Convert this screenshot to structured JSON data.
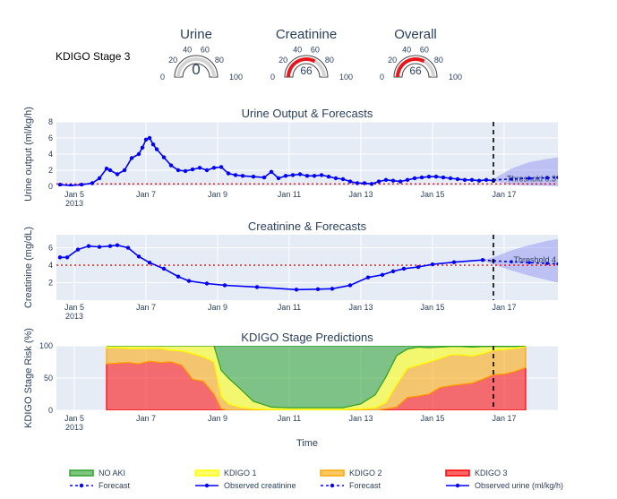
{
  "header": {
    "stage_label": "KDIGO Stage 3"
  },
  "gauges": [
    {
      "title": "Urine",
      "value": 0,
      "min": 0,
      "max": 100,
      "ticks": [
        "0",
        "20",
        "40",
        "60",
        "80",
        "100"
      ],
      "bar_color": "#d9d9d9"
    },
    {
      "title": "Creatinine",
      "value": 66,
      "min": 0,
      "max": 100,
      "ticks": [
        "0",
        "20",
        "40",
        "60",
        "80",
        "100"
      ],
      "bar_color": "#e8161b"
    },
    {
      "title": "Overall",
      "value": 66,
      "min": 0,
      "max": 100,
      "ticks": [
        "0",
        "20",
        "40",
        "60",
        "80",
        "100"
      ],
      "bar_color": "#e8161b"
    }
  ],
  "colors": {
    "plot_bg": "#e5ecf6",
    "observed": "#0000ff",
    "forecast_band": "#8c8cf0",
    "threshold": "#ff0000",
    "no_aki": "#2ca02c",
    "kdigo1": "#ffff00",
    "kdigo2": "#ffa500",
    "kdigo3": "#ff0000"
  },
  "x_ticks": [
    {
      "day": 5,
      "label": "Jan 5",
      "sub": "2013"
    },
    {
      "day": 7,
      "label": "Jan 7",
      "sub": ""
    },
    {
      "day": 9,
      "label": "Jan 9",
      "sub": ""
    },
    {
      "day": 11,
      "label": "Jan 11",
      "sub": ""
    },
    {
      "day": 13,
      "label": "Jan 13",
      "sub": ""
    },
    {
      "day": 15,
      "label": "Jan 15",
      "sub": ""
    },
    {
      "day": 17,
      "label": "Jan 17",
      "sub": ""
    }
  ],
  "chart_data": [
    {
      "type": "line",
      "title": "Urine Output & Forecasts",
      "xlabel": "",
      "ylabel": "Urine output (ml/kg/h)",
      "ylim": [
        0,
        8
      ],
      "yticks": [
        0,
        2,
        4,
        6,
        8
      ],
      "xlim_days": [
        4.5,
        18.5
      ],
      "current_time_day": 16.7,
      "threshold": {
        "value": 0.3,
        "label": "Threshold 0.3"
      },
      "series": [
        {
          "name": "Observed urine (ml/kg/h)",
          "x_days": [
            4.6,
            4.9,
            5.2,
            5.5,
            5.7,
            5.9,
            6.0,
            6.2,
            6.4,
            6.6,
            6.8,
            6.9,
            7.0,
            7.1,
            7.2,
            7.3,
            7.5,
            7.7,
            7.9,
            8.1,
            8.3,
            8.5,
            8.7,
            8.9,
            9.1,
            9.3,
            9.5,
            9.7,
            10.0,
            10.3,
            10.5,
            10.7,
            10.9,
            11.1,
            11.3,
            11.5,
            11.7,
            11.9,
            12.1,
            12.3,
            12.5,
            12.7,
            12.9,
            13.1,
            13.3,
            13.5,
            13.7,
            13.9,
            14.1,
            14.3,
            14.5,
            14.7,
            14.9,
            15.1,
            15.3,
            15.5,
            15.7,
            15.9,
            16.1,
            16.3,
            16.5,
            16.7
          ],
          "values": [
            0.2,
            0.1,
            0.2,
            0.4,
            1.0,
            2.2,
            2.0,
            1.5,
            2.0,
            3.5,
            4.0,
            4.8,
            5.8,
            6.0,
            5.2,
            4.6,
            3.6,
            2.6,
            2.0,
            1.9,
            2.1,
            2.3,
            2.0,
            2.3,
            2.4,
            1.6,
            1.4,
            1.3,
            1.2,
            1.1,
            1.8,
            1.0,
            1.3,
            1.4,
            1.5,
            1.3,
            1.3,
            1.4,
            1.2,
            1.0,
            0.9,
            0.6,
            0.4,
            0.4,
            0.3,
            0.6,
            0.8,
            0.7,
            0.6,
            0.8,
            1.0,
            1.1,
            1.2,
            1.2,
            1.1,
            1.0,
            0.9,
            0.8,
            0.8,
            0.7,
            0.8,
            0.7
          ]
        },
        {
          "name": "Forecast",
          "x_days": [
            16.7,
            17.2,
            17.7,
            18.2,
            18.5
          ],
          "values": [
            0.8,
            0.9,
            1.0,
            1.05,
            1.1
          ]
        },
        {
          "name": "Forecast band",
          "x_days": [
            16.7,
            17.2,
            17.7,
            18.2,
            18.5
          ],
          "upper": [
            0.9,
            2.2,
            3.0,
            3.4,
            3.6
          ],
          "lower": [
            0.7,
            0.2,
            0.1,
            0.05,
            0.0
          ]
        }
      ]
    },
    {
      "type": "line",
      "title": "Creatinine & Forecasts",
      "xlabel": "",
      "ylabel": "Creatinine (mg/dL)",
      "ylim": [
        0,
        7.5
      ],
      "yticks": [
        2,
        4,
        6
      ],
      "xlim_days": [
        4.5,
        18.5
      ],
      "current_time_day": 16.7,
      "threshold": {
        "value": 4,
        "label": "Threshold 4"
      },
      "series": [
        {
          "name": "Observed creatinine",
          "x_days": [
            4.6,
            4.8,
            5.1,
            5.4,
            5.7,
            6.0,
            6.2,
            6.5,
            6.8,
            7.1,
            7.5,
            7.9,
            8.2,
            8.7,
            9.2,
            10.1,
            11.2,
            11.8,
            12.2,
            12.7,
            13.2,
            13.6,
            13.9,
            14.2,
            14.6,
            15.0,
            15.6,
            16.4
          ],
          "values": [
            4.9,
            4.9,
            5.8,
            6.2,
            6.1,
            6.2,
            6.3,
            6.0,
            5.0,
            4.3,
            3.6,
            2.7,
            2.2,
            1.9,
            1.7,
            1.5,
            1.2,
            1.25,
            1.3,
            1.7,
            2.6,
            2.9,
            3.3,
            3.6,
            3.8,
            4.1,
            4.35,
            4.6
          ]
        },
        {
          "name": "Forecast",
          "x_days": [
            16.4,
            16.7,
            17.2,
            17.7,
            18.2,
            18.5
          ],
          "values": [
            4.6,
            4.5,
            4.4,
            4.3,
            4.2,
            4.15
          ]
        },
        {
          "name": "Forecast band",
          "x_days": [
            16.4,
            16.7,
            17.2,
            17.7,
            18.2,
            18.5
          ],
          "upper": [
            4.6,
            4.9,
            5.7,
            6.3,
            6.8,
            7.0
          ],
          "lower": [
            4.6,
            4.1,
            3.4,
            2.8,
            2.3,
            2.0
          ]
        }
      ]
    },
    {
      "type": "area",
      "title": "KDIGO Stage Predictions",
      "xlabel": "Time",
      "ylabel": "KDIGO Stage Risk (%)",
      "ylim": [
        0,
        100
      ],
      "yticks": [
        0,
        50,
        100
      ],
      "xlim_days": [
        4.5,
        18.5
      ],
      "current_time_day": 16.7,
      "x_days": [
        5.9,
        6.2,
        6.5,
        6.8,
        7.1,
        7.4,
        7.7,
        8.0,
        8.3,
        8.6,
        8.9,
        9.1,
        9.3,
        9.6,
        10.0,
        10.5,
        11.0,
        11.5,
        12.0,
        12.5,
        13.0,
        13.4,
        13.7,
        14.0,
        14.3,
        14.6,
        14.9,
        15.2,
        15.5,
        15.8,
        16.1,
        16.4,
        16.7,
        17.0,
        17.3,
        17.6
      ],
      "series": [
        {
          "name": "KDIGO 3",
          "values": [
            72,
            73,
            74,
            72,
            76,
            74,
            75,
            70,
            48,
            45,
            25,
            2,
            0,
            0,
            0,
            0,
            0,
            0,
            0,
            0,
            0,
            0,
            2,
            5,
            20,
            22,
            25,
            35,
            38,
            40,
            42,
            48,
            55,
            56,
            60,
            66
          ]
        },
        {
          "name": "KDIGO 2",
          "values": [
            25,
            24,
            22,
            24,
            20,
            22,
            18,
            22,
            40,
            38,
            50,
            20,
            10,
            5,
            2,
            1,
            1,
            1,
            1,
            1,
            2,
            4,
            10,
            35,
            45,
            48,
            50,
            45,
            48,
            46,
            42,
            40,
            38,
            38,
            36,
            33
          ]
        },
        {
          "name": "KDIGO 1",
          "values": [
            3,
            3,
            4,
            4,
            4,
            4,
            7,
            8,
            12,
            17,
            25,
            40,
            40,
            30,
            12,
            4,
            3,
            3,
            3,
            3,
            8,
            20,
            40,
            45,
            30,
            28,
            22,
            18,
            13,
            13,
            14,
            11,
            6,
            5,
            3,
            1
          ]
        },
        {
          "name": "NO AKI",
          "values": [
            0,
            0,
            0,
            0,
            0,
            0,
            0,
            0,
            0,
            0,
            0,
            38,
            50,
            65,
            86,
            95,
            96,
            96,
            96,
            96,
            90,
            76,
            48,
            15,
            5,
            2,
            3,
            2,
            1,
            1,
            2,
            1,
            1,
            1,
            1,
            0
          ]
        }
      ]
    }
  ],
  "legend": [
    {
      "label": "NO AKI",
      "kind": "fill",
      "color": "#2ca02c"
    },
    {
      "label": "KDIGO 1",
      "kind": "fill",
      "color": "#ffff00"
    },
    {
      "label": "KDIGO 2",
      "kind": "fill",
      "color": "#ffa500"
    },
    {
      "label": "KDIGO 3",
      "kind": "fill",
      "color": "#ff0000"
    },
    {
      "label": "Forecast",
      "kind": "dash",
      "color": "#0000ff"
    },
    {
      "label": "Observed creatinine",
      "kind": "line",
      "color": "#0000ff"
    },
    {
      "label": "Forecast",
      "kind": "dash",
      "color": "#0000ff"
    },
    {
      "label": "Observed urine (ml/kg/h)",
      "kind": "line",
      "color": "#0000ff"
    }
  ]
}
